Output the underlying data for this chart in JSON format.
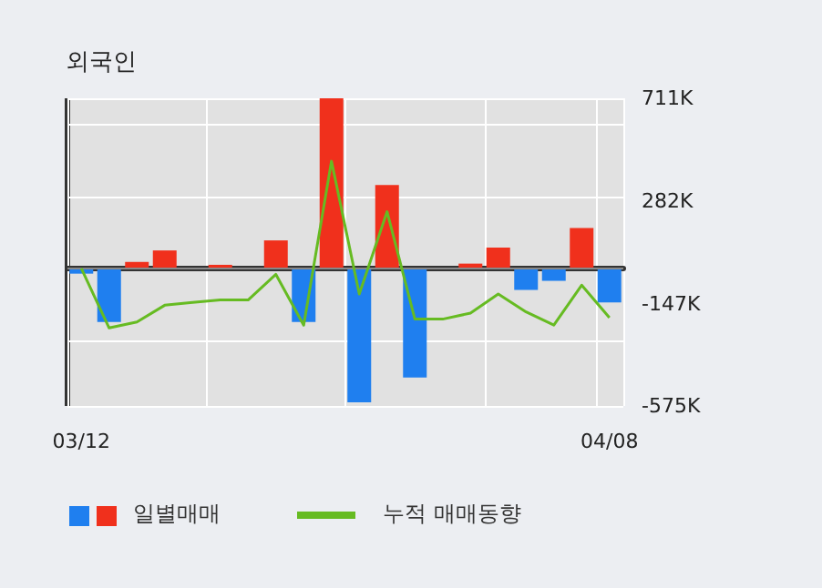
{
  "chart_data": {
    "type": "bar",
    "title": "외국인",
    "categories": [
      "03/12",
      null,
      null,
      null,
      null,
      null,
      null,
      null,
      null,
      null,
      null,
      null,
      null,
      null,
      null,
      null,
      null,
      null,
      null,
      "04/08"
    ],
    "series": [
      {
        "name": "일별매매",
        "colors": [
          "#1f7fef",
          "#1f7fef",
          "#f0301c",
          "#f0301c",
          "#f0301c",
          "#f0301c",
          "#f0301c",
          "#f0301c",
          "#1f7fef",
          "#f0301c",
          "#1f7fef",
          "#f0301c",
          "#1f7fef",
          "#f0301c",
          "#f0301c",
          "#f0301c",
          "#1f7fef",
          "#1f7fef",
          "#f0301c",
          "#1f7fef"
        ],
        "values": [
          -22,
          -224,
          27,
          75,
          0,
          15,
          0,
          117,
          -224,
          711,
          -560,
          349,
          -456,
          0,
          20,
          87,
          -90,
          -52,
          169,
          -142
        ]
      },
      {
        "name": "누적 매매동향",
        "type": "line",
        "color": "#66bb22",
        "values": [
          0,
          -249,
          -224,
          -154,
          -142,
          -132,
          -132,
          -25,
          -237,
          448,
          -107,
          237,
          -212,
          -212,
          -187,
          -107,
          -182,
          -237,
          -70,
          -206
        ]
      }
    ],
    "ylim": [
      -575,
      711
    ],
    "yticks": [
      {
        "value": -575,
        "label": "-575K"
      },
      {
        "value": -147,
        "label": "-147K"
      },
      {
        "value": 282,
        "label": "282K"
      },
      {
        "value": 711,
        "label": "711K"
      }
    ],
    "ref_lines": [
      {
        "axis": "y",
        "value": 0,
        "color": "#888888"
      }
    ],
    "grid": true,
    "legend": "bottom",
    "marker": "none",
    "line_style": "solid"
  }
}
